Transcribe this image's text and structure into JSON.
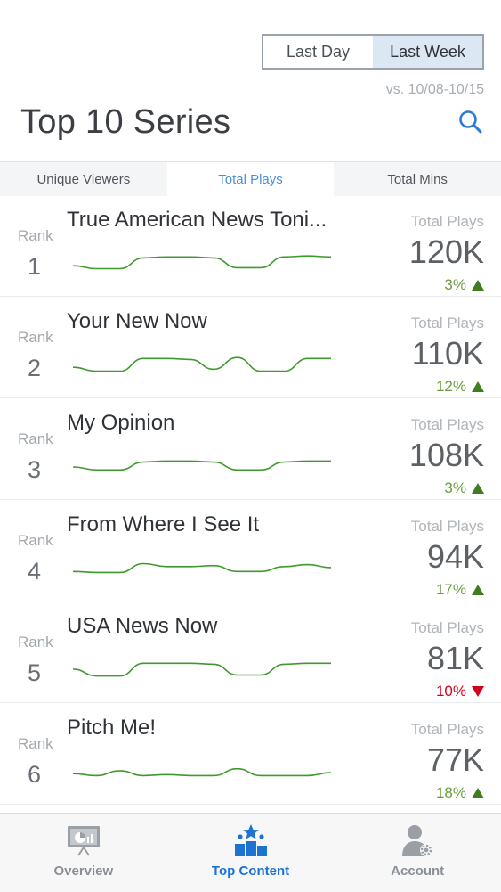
{
  "period": {
    "options": [
      "Last Day",
      "Last Week"
    ],
    "selected": "Last Week"
  },
  "comparison": "vs. 10/08-10/15",
  "page_title": "Top 10 Series",
  "tabs": [
    {
      "label": "Unique Viewers",
      "active": false
    },
    {
      "label": "Total Plays",
      "active": true
    },
    {
      "label": "Total Mins",
      "active": false
    }
  ],
  "series": [
    {
      "rank_label": "Rank",
      "rank": "1",
      "name": "True American News Toni...",
      "metric_label": "Total Plays",
      "value": "120K",
      "change": "3%",
      "direction": "up",
      "trend": [
        0.4,
        0.25,
        0.25,
        0.8,
        0.85,
        0.85,
        0.8,
        0.3,
        0.3,
        0.85,
        0.9,
        0.85
      ]
    },
    {
      "rank_label": "Rank",
      "rank": "2",
      "name": "Your New Now",
      "metric_label": "Total Plays",
      "value": "110K",
      "change": "12%",
      "direction": "up",
      "trend": [
        0.4,
        0.2,
        0.2,
        0.85,
        0.85,
        0.8,
        0.3,
        0.9,
        0.2,
        0.2,
        0.85,
        0.85
      ]
    },
    {
      "rank_label": "Rank",
      "rank": "3",
      "name": "My Opinion",
      "metric_label": "Total Plays",
      "value": "108K",
      "change": "3%",
      "direction": "up",
      "trend": [
        0.5,
        0.35,
        0.35,
        0.75,
        0.8,
        0.8,
        0.75,
        0.35,
        0.35,
        0.75,
        0.8,
        0.8
      ]
    },
    {
      "rank_label": "Rank",
      "rank": "4",
      "name": "From Where I See It",
      "metric_label": "Total Plays",
      "value": "94K",
      "change": "17%",
      "direction": "up",
      "trend": [
        0.35,
        0.3,
        0.3,
        0.75,
        0.6,
        0.6,
        0.65,
        0.35,
        0.35,
        0.6,
        0.7,
        0.55
      ]
    },
    {
      "rank_label": "Rank",
      "rank": "5",
      "name": "USA News Now",
      "metric_label": "Total Plays",
      "value": "81K",
      "change": "10%",
      "direction": "down",
      "trend": [
        0.55,
        0.2,
        0.2,
        0.85,
        0.85,
        0.85,
        0.8,
        0.25,
        0.25,
        0.8,
        0.85,
        0.85
      ]
    },
    {
      "rank_label": "Rank",
      "rank": "6",
      "name": "Pitch Me!",
      "metric_label": "Total Plays",
      "value": "77K",
      "change": "18%",
      "direction": "up",
      "trend": [
        0.4,
        0.3,
        0.55,
        0.3,
        0.35,
        0.3,
        0.3,
        0.65,
        0.3,
        0.3,
        0.3,
        0.45
      ]
    }
  ],
  "nav": [
    {
      "label": "Overview",
      "icon": "presentation-chart-icon",
      "active": false
    },
    {
      "label": "Top Content",
      "icon": "podium-star-icon",
      "active": true
    },
    {
      "label": "Account",
      "icon": "user-gear-icon",
      "active": false
    }
  ],
  "colors": {
    "accent": "#1e73d2",
    "trend_line": "#3f9a2c",
    "up": "#3f7d1e",
    "down": "#d0021b",
    "tab_active": "#4a90d9"
  }
}
